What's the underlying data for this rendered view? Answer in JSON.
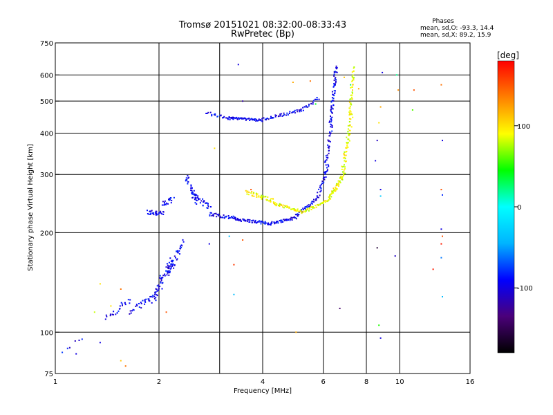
{
  "chart_data": {
    "type": "scatter",
    "title": "Tromsø 20151021 08:32:00-08:33:43",
    "subtitle": "RwPretec (Bp)",
    "xlabel": "Frequency [MHz]",
    "ylabel": "Stationary phase Virtual Height [km]",
    "x_scale": "log",
    "y_scale": "log",
    "xlim": [
      1,
      16
    ],
    "ylim": [
      75,
      750
    ],
    "x_ticks": [
      {
        "v": 1,
        "label": "1"
      },
      {
        "v": 2,
        "label": "2"
      },
      {
        "v": 4,
        "label": "4"
      },
      {
        "v": 6,
        "label": "6"
      },
      {
        "v": 8,
        "label": "8"
      },
      {
        "v": 10,
        "label": "10"
      },
      {
        "v": 16,
        "label": "16"
      }
    ],
    "x_grid": [
      2,
      3,
      4,
      6,
      8,
      10
    ],
    "y_ticks": [
      {
        "v": 75,
        "label": "75"
      },
      {
        "v": 100,
        "label": "100"
      },
      {
        "v": 200,
        "label": "200"
      },
      {
        "v": 300,
        "label": "300"
      },
      {
        "v": 400,
        "label": "400"
      },
      {
        "v": 500,
        "label": "500"
      },
      {
        "v": 600,
        "label": "600"
      },
      {
        "v": 750,
        "label": "750"
      }
    ],
    "y_grid": [
      100,
      200,
      300,
      400,
      500,
      600
    ],
    "grid": true,
    "phase_box": {
      "title": "Phases",
      "line1": "mean, sd,O: -93.3, 14.4",
      "line2": "mean, sd,X:  89.2, 15.9"
    },
    "colorbar": {
      "label": "[deg]",
      "range": [
        -180,
        180
      ],
      "ticks": [
        {
          "v": 100,
          "label": "100"
        },
        {
          "v": 0,
          "label": "0"
        },
        {
          "v": -100,
          "label": "-100"
        }
      ],
      "stops": [
        "#000000",
        "#4b007a",
        "#0000ff",
        "#00b4ff",
        "#00ffff",
        "#00ff00",
        "#ffff00",
        "#ff8000",
        "#ff0000"
      ]
    },
    "traces": [
      {
        "name": "O",
        "phase": -95,
        "segments": [
          {
            "x0": 1.85,
            "x1": 2.05,
            "y0": 230,
            "y1": 230,
            "n": 30,
            "j": 0.04
          },
          {
            "x0": 2.05,
            "x1": 2.2,
            "y0": 240,
            "y1": 255,
            "n": 20,
            "j": 0.05
          },
          {
            "x0": 2.4,
            "x1": 2.55,
            "y0": 300,
            "y1": 250,
            "n": 30,
            "j": 0.05
          },
          {
            "x0": 2.5,
            "x1": 2.8,
            "y0": 260,
            "y1": 240,
            "n": 35,
            "j": 0.04
          },
          {
            "x0": 2.8,
            "x1": 3.4,
            "y0": 228,
            "y1": 220,
            "n": 40,
            "j": 0.025
          },
          {
            "x0": 3.3,
            "x1": 4.2,
            "y0": 220,
            "y1": 213,
            "n": 60,
            "j": 0.02
          },
          {
            "x0": 4.2,
            "x1": 5.0,
            "y0": 213,
            "y1": 222,
            "n": 40,
            "j": 0.02
          },
          {
            "x0": 5.0,
            "x1": 5.8,
            "y0": 225,
            "y1": 255,
            "n": 40,
            "j": 0.025
          },
          {
            "x0": 5.8,
            "x1": 6.2,
            "y0": 260,
            "y1": 320,
            "n": 35,
            "j": 0.03
          },
          {
            "x0": 6.1,
            "x1": 6.35,
            "y0": 320,
            "y1": 430,
            "n": 35,
            "j": 0.03
          },
          {
            "x0": 6.3,
            "x1": 6.55,
            "y0": 430,
            "y1": 640,
            "n": 60,
            "j": 0.03
          },
          {
            "x0": 2.75,
            "x1": 3.3,
            "y0": 460,
            "y1": 440,
            "n": 25,
            "j": 0.02
          },
          {
            "x0": 3.2,
            "x1": 4.0,
            "y0": 445,
            "y1": 437,
            "n": 50,
            "j": 0.015
          },
          {
            "x0": 4.0,
            "x1": 5.2,
            "y0": 440,
            "y1": 470,
            "n": 45,
            "j": 0.02
          },
          {
            "x0": 5.2,
            "x1": 5.8,
            "y0": 470,
            "y1": 510,
            "n": 20,
            "j": 0.02
          },
          {
            "x0": 1.4,
            "x1": 1.65,
            "y0": 110,
            "y1": 125,
            "n": 25,
            "j": 0.04
          },
          {
            "x0": 1.65,
            "x1": 1.9,
            "y0": 115,
            "y1": 128,
            "n": 25,
            "j": 0.04
          },
          {
            "x0": 1.9,
            "x1": 2.2,
            "y0": 125,
            "y1": 165,
            "n": 60,
            "j": 0.07
          },
          {
            "x0": 2.1,
            "x1": 2.35,
            "y0": 150,
            "y1": 185,
            "n": 40,
            "j": 0.06
          },
          {
            "x0": 1.05,
            "x1": 1.2,
            "y0": 88,
            "y1": 96,
            "n": 6,
            "j": 0.03
          }
        ]
      },
      {
        "name": "X",
        "phase": 90,
        "segments": [
          {
            "x0": 3.6,
            "x1": 4.3,
            "y0": 265,
            "y1": 250,
            "n": 45,
            "j": 0.03
          },
          {
            "x0": 4.3,
            "x1": 5.3,
            "y0": 245,
            "y1": 230,
            "n": 50,
            "j": 0.02
          },
          {
            "x0": 5.3,
            "x1": 6.2,
            "y0": 232,
            "y1": 250,
            "n": 40,
            "j": 0.02
          },
          {
            "x0": 6.2,
            "x1": 6.9,
            "y0": 252,
            "y1": 300,
            "n": 50,
            "j": 0.03
          },
          {
            "x0": 6.8,
            "x1": 7.25,
            "y0": 300,
            "y1": 450,
            "n": 60,
            "j": 0.04
          },
          {
            "x0": 7.15,
            "x1": 7.35,
            "y0": 450,
            "y1": 630,
            "n": 40,
            "j": 0.03
          }
        ]
      }
    ],
    "outliers": [
      {
        "x": 3.4,
        "y": 645,
        "phase": -100
      },
      {
        "x": 3.5,
        "y": 500,
        "phase": -120
      },
      {
        "x": 4.9,
        "y": 570,
        "phase": 120
      },
      {
        "x": 5.5,
        "y": 575,
        "phase": 140
      },
      {
        "x": 5.7,
        "y": 490,
        "phase": 40
      },
      {
        "x": 6.9,
        "y": 590,
        "phase": 110
      },
      {
        "x": 7.2,
        "y": 560,
        "phase": 30
      },
      {
        "x": 7.6,
        "y": 545,
        "phase": 120
      },
      {
        "x": 8.5,
        "y": 330,
        "phase": -100
      },
      {
        "x": 8.6,
        "y": 380,
        "phase": -110
      },
      {
        "x": 8.7,
        "y": 430,
        "phase": 100
      },
      {
        "x": 8.8,
        "y": 480,
        "phase": 120
      },
      {
        "x": 8.9,
        "y": 610,
        "phase": -100
      },
      {
        "x": 9.8,
        "y": 600,
        "phase": 20
      },
      {
        "x": 9.9,
        "y": 540,
        "phase": 130
      },
      {
        "x": 11.0,
        "y": 540,
        "phase": 150
      },
      {
        "x": 10.9,
        "y": 470,
        "phase": 60
      },
      {
        "x": 13.2,
        "y": 560,
        "phase": 140
      },
      {
        "x": 13.3,
        "y": 380,
        "phase": -100
      },
      {
        "x": 13.2,
        "y": 270,
        "phase": 150
      },
      {
        "x": 13.3,
        "y": 260,
        "phase": -80
      },
      {
        "x": 13.2,
        "y": 205,
        "phase": -100
      },
      {
        "x": 13.3,
        "y": 195,
        "phase": 150
      },
      {
        "x": 13.2,
        "y": 185,
        "phase": 170
      },
      {
        "x": 13.2,
        "y": 168,
        "phase": -60
      },
      {
        "x": 12.5,
        "y": 155,
        "phase": 170
      },
      {
        "x": 13.3,
        "y": 128,
        "phase": -40
      },
      {
        "x": 9.7,
        "y": 170,
        "phase": -110
      },
      {
        "x": 8.6,
        "y": 180,
        "phase": -160
      },
      {
        "x": 8.8,
        "y": 270,
        "phase": -100
      },
      {
        "x": 8.8,
        "y": 258,
        "phase": -30
      },
      {
        "x": 8.7,
        "y": 105,
        "phase": 50
      },
      {
        "x": 8.8,
        "y": 96,
        "phase": -100
      },
      {
        "x": 6.7,
        "y": 118,
        "phase": -140
      },
      {
        "x": 3.3,
        "y": 130,
        "phase": -40
      },
      {
        "x": 3.5,
        "y": 190,
        "phase": 150
      },
      {
        "x": 3.3,
        "y": 160,
        "phase": 160
      },
      {
        "x": 3.7,
        "y": 270,
        "phase": 150
      },
      {
        "x": 2.9,
        "y": 360,
        "phase": 100
      },
      {
        "x": 3.2,
        "y": 195,
        "phase": -40
      },
      {
        "x": 2.8,
        "y": 185,
        "phase": -100
      },
      {
        "x": 1.35,
        "y": 140,
        "phase": 100
      },
      {
        "x": 1.45,
        "y": 120,
        "phase": 100
      },
      {
        "x": 1.55,
        "y": 82,
        "phase": 110
      },
      {
        "x": 1.6,
        "y": 79,
        "phase": 140
      },
      {
        "x": 1.3,
        "y": 115,
        "phase": 80
      },
      {
        "x": 1.55,
        "y": 135,
        "phase": 140
      },
      {
        "x": 2.1,
        "y": 115,
        "phase": 150
      },
      {
        "x": 1.15,
        "y": 86,
        "phase": -100
      },
      {
        "x": 1.35,
        "y": 93,
        "phase": -100
      },
      {
        "x": 5.0,
        "y": 100,
        "phase": 120
      }
    ]
  }
}
